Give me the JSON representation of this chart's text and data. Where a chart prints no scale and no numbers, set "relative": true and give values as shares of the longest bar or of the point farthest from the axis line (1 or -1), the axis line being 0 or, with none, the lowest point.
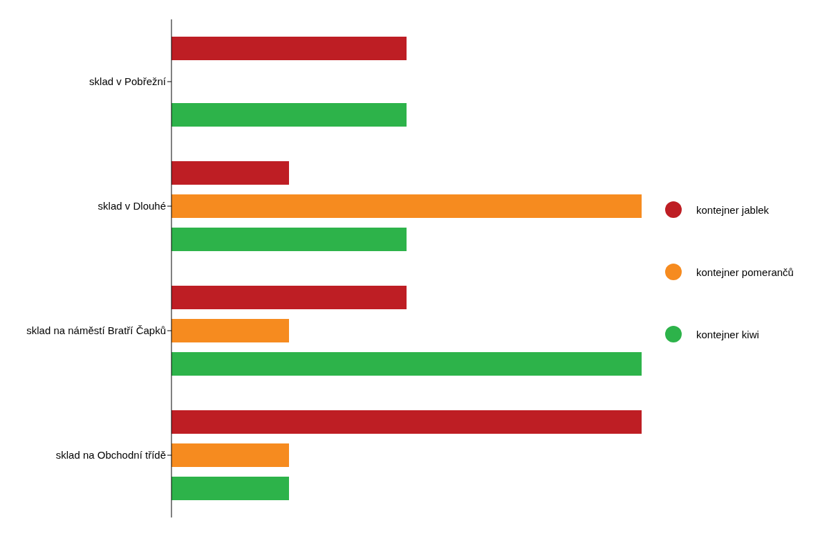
{
  "chart_data": {
    "type": "bar",
    "orientation": "horizontal",
    "relative": true,
    "legend": "right",
    "categories": [
      "sklad v Pobřežní",
      "sklad v Dlouhé",
      "sklad na náměstí Bratří Čapků",
      "sklad na Obchodní třídě"
    ],
    "series": [
      {
        "name": "kontejner jablek",
        "color": "#be1e24",
        "values": [
          0.5,
          0.25,
          0.5,
          1
        ]
      },
      {
        "name": "kontejner pomerančů",
        "color": "#f68b1f",
        "values": [
          0,
          1,
          0.25,
          0.25
        ]
      },
      {
        "name": "kontejner kiwi",
        "color": "#2db34a",
        "values": [
          0.5,
          0.5,
          1,
          0.25
        ]
      }
    ]
  }
}
